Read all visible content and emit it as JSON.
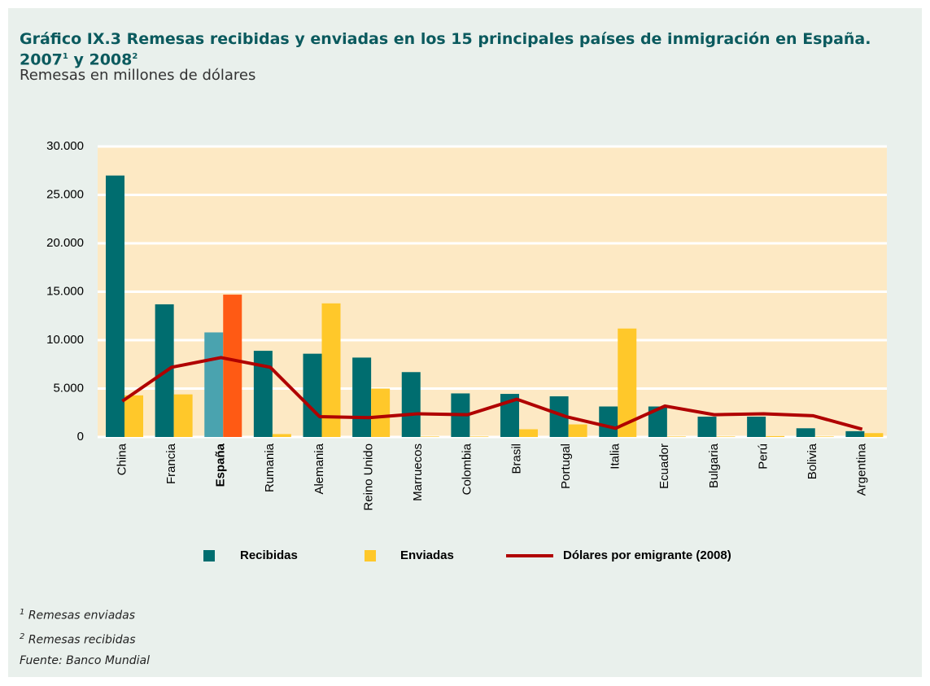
{
  "title_parts": [
    {
      "text": "Gráfico IX.3 Remesas recibidas y enviadas en los 15 principales países de inmigración en España. 2007"
    },
    {
      "text": "1",
      "sup": true
    },
    {
      "text": " y 2008"
    },
    {
      "text": "2",
      "sup": true
    }
  ],
  "subtitle": "Remesas en millones de dólares",
  "notes": [
    [
      {
        "text": "1",
        "sup": true
      },
      {
        "text": " Remesas enviadas"
      }
    ],
    [
      {
        "text": "2",
        "sup": true
      },
      {
        "text": " Remesas recibidas"
      }
    ],
    [
      {
        "text": "Fuente:  Banco Mundial"
      }
    ]
  ],
  "chart_data": {
    "type": "bar_line",
    "categories": [
      "China",
      "Francia",
      "España",
      "Rumania",
      "Alemania",
      "Reino Unido",
      "Marruecos",
      "Colombia",
      "Brasil",
      "Portugal",
      "Italia",
      "Ecuador",
      "Bulgaria",
      "Perú",
      "Bolivia",
      "Argentina"
    ],
    "highlight_index": 2,
    "series": [
      {
        "name": "Recibidas",
        "type": "bar",
        "color": "#006d6f",
        "highlight_color": "#4aa3af",
        "values": [
          27000,
          13700,
          10800,
          8900,
          8600,
          8200,
          6700,
          4500,
          4450,
          4200,
          3150,
          3150,
          2100,
          2100,
          900,
          600
        ]
      },
      {
        "name": "Enviadas",
        "type": "bar",
        "color": "#ffc82a",
        "highlight_color": "#ff5a14",
        "values": [
          4300,
          4400,
          14700,
          300,
          13800,
          5000,
          50,
          50,
          800,
          1300,
          11200,
          50,
          50,
          100,
          50,
          400
        ]
      },
      {
        "name": "Dólares por emigrante  (2008)",
        "type": "line",
        "color": "#b00000",
        "values": [
          3700,
          7200,
          8200,
          7200,
          2100,
          2000,
          2400,
          2300,
          3900,
          2100,
          900,
          3200,
          2300,
          2400,
          2200,
          800
        ]
      }
    ],
    "ylim": [
      0,
      30000
    ],
    "yticks": [
      0,
      {
        "value": 5000,
        "label": "5.000"
      },
      {
        "value": 10000,
        "label": "10.000"
      },
      {
        "value": 15000,
        "label": "15.000"
      },
      {
        "value": 20000,
        "label": "20.000"
      },
      {
        "value": 25000,
        "label": "25.000"
      },
      {
        "value": 30000,
        "label": "30.000"
      }
    ],
    "grid": true,
    "plot_background": "#fde9c4",
    "legend": "bottom"
  }
}
